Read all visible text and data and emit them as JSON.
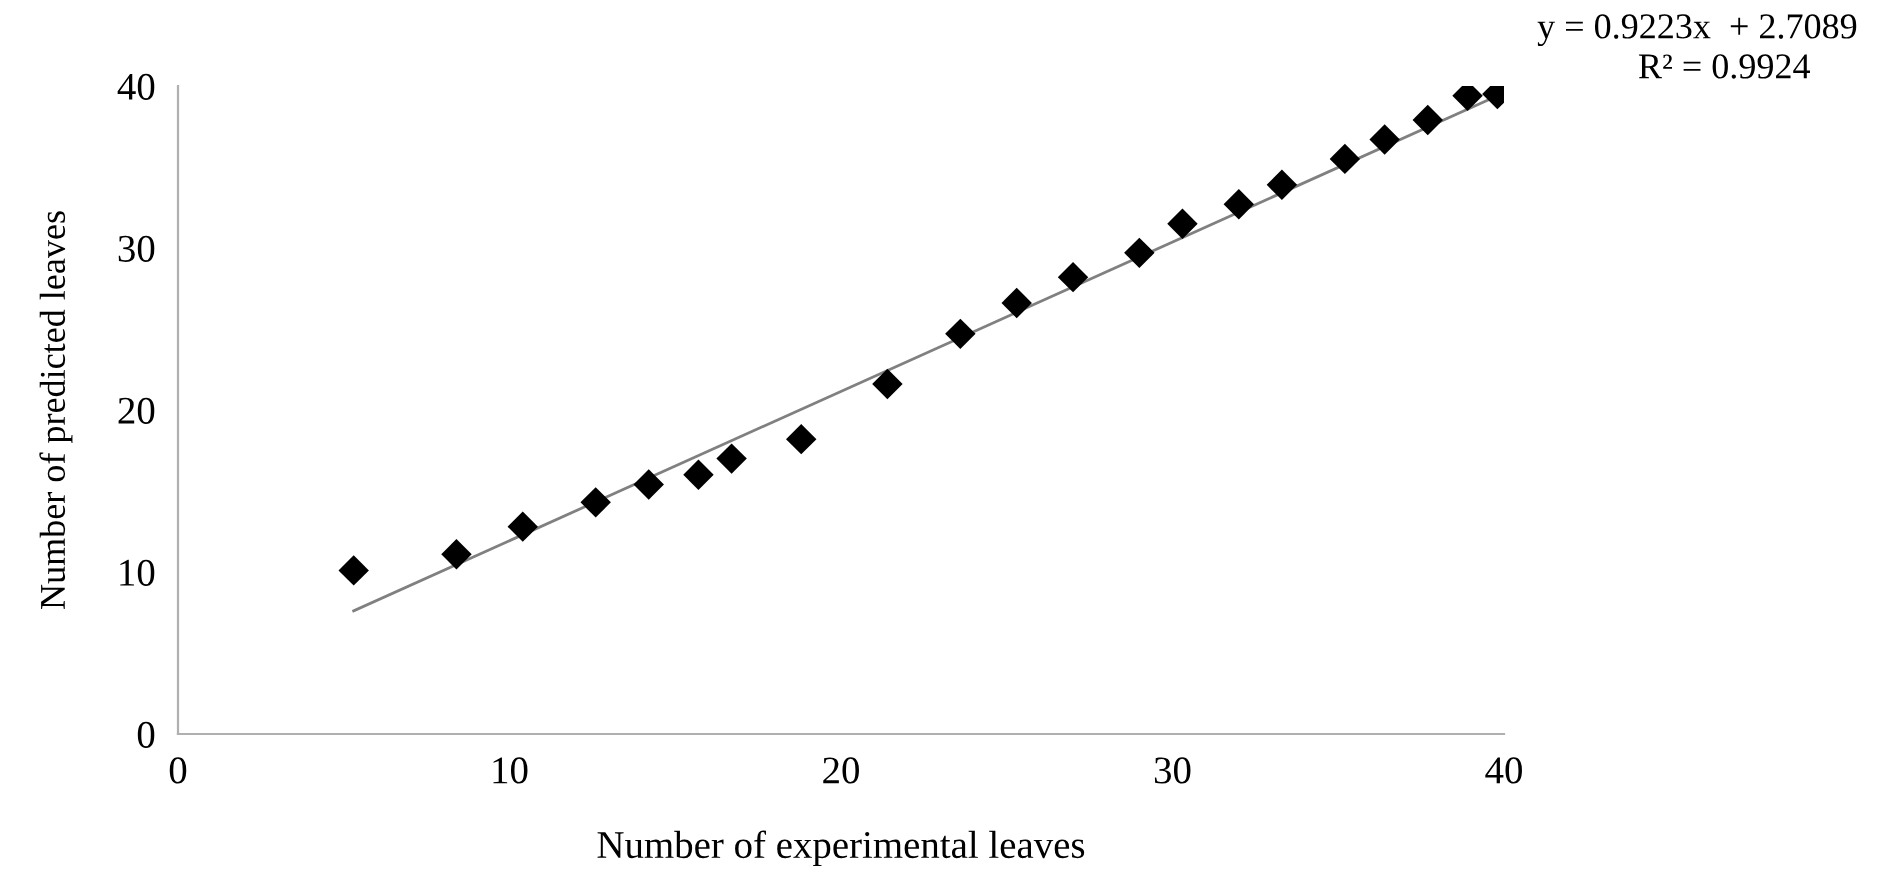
{
  "chart_data": {
    "type": "scatter",
    "xlabel": "Number of experimental leaves",
    "ylabel": "Number of predicted leaves",
    "annotations": [
      "y = 0.9223x  + 2.7089",
      "R² = 0.9924"
    ],
    "series": [
      {
        "color": "#000000",
        "marker": "diamond",
        "x": [
          5.3,
          8.4,
          10.4,
          12.6,
          14.2,
          15.7,
          16.7,
          18.8,
          21.4,
          23.6,
          25.3,
          27.0,
          29.0,
          30.3,
          32.0,
          33.3,
          35.2,
          36.4,
          37.7,
          38.9,
          39.8
        ],
        "values": [
          10.1,
          11.1,
          12.8,
          14.3,
          15.4,
          16.0,
          17.0,
          18.2,
          21.6,
          24.7,
          26.6,
          28.2,
          29.7,
          31.5,
          32.7,
          33.9,
          35.5,
          36.7,
          37.9,
          39.4,
          39.5
        ]
      },
      {
        "type": "line",
        "color": "#808080",
        "marker": "none",
        "x": [
          5.3,
          39.8
        ],
        "values": [
          7.6,
          39.4
        ]
      }
    ],
    "xlim": [
      0,
      40
    ],
    "ylim": [
      0,
      40
    ],
    "xticks": [
      0,
      10,
      20,
      30,
      40
    ],
    "yticks": [
      0,
      10,
      20,
      30,
      40
    ],
    "grid": false,
    "legend": false
  }
}
